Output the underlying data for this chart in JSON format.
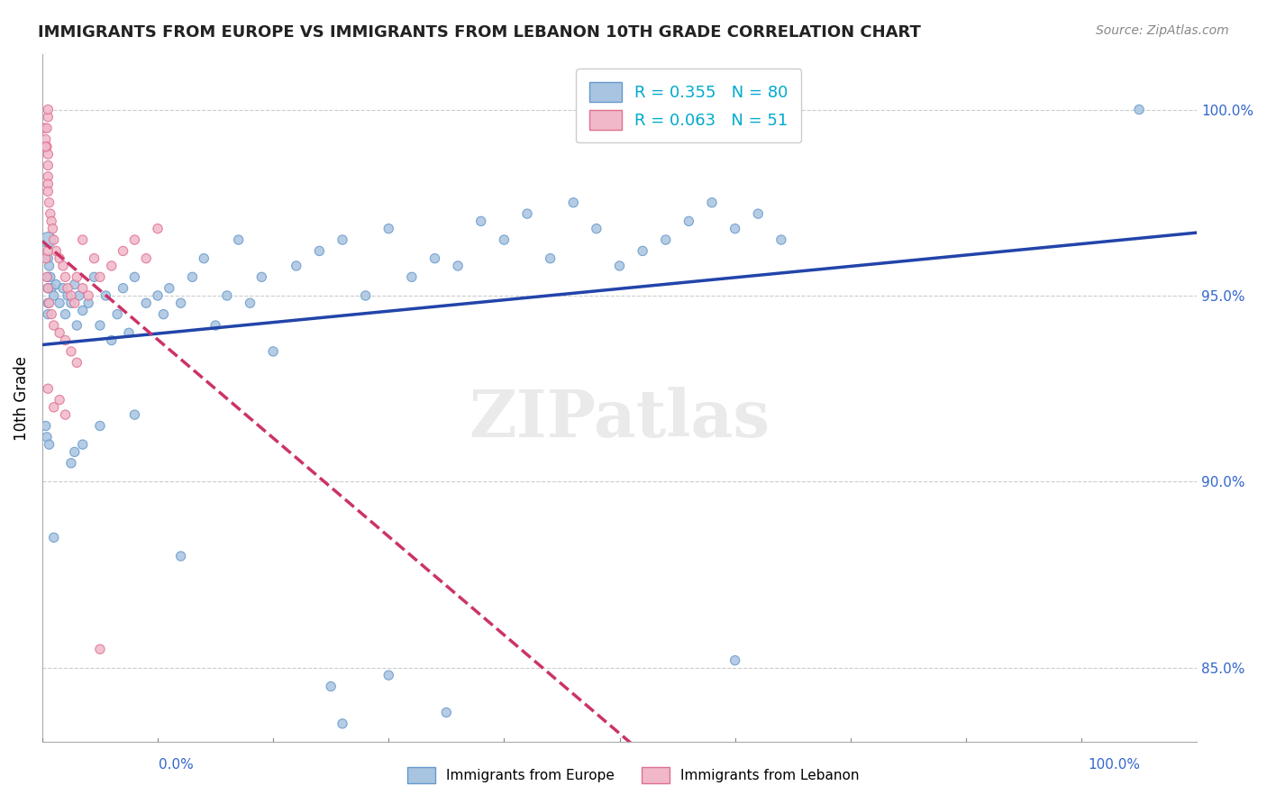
{
  "title": "IMMIGRANTS FROM EUROPE VS IMMIGRANTS FROM LEBANON 10TH GRADE CORRELATION CHART",
  "source": "Source: ZipAtlas.com",
  "ylabel": "10th Grade",
  "legend_blue_label": "Immigrants from Europe",
  "legend_pink_label": "Immigrants from Lebanon",
  "R_blue": 0.355,
  "N_blue": 80,
  "R_pink": 0.063,
  "N_pink": 51,
  "blue_color": "#a8c4e0",
  "blue_edge": "#6699cc",
  "pink_color": "#f0b8c8",
  "pink_edge": "#e07090",
  "blue_line_color": "#2244aa",
  "pink_line_color": "#cc3366",
  "xlim": [
    0.0,
    100.0
  ],
  "ylim": [
    83.0,
    101.5
  ],
  "yticks": [
    85.0,
    90.0,
    95.0,
    100.0
  ],
  "blue_points": [
    [
      0.5,
      96.5
    ],
    [
      0.5,
      96.0
    ],
    [
      0.5,
      95.5
    ],
    [
      0.5,
      95.2
    ],
    [
      0.5,
      94.8
    ],
    [
      0.5,
      94.5
    ],
    [
      0.6,
      95.8
    ],
    [
      0.7,
      95.5
    ],
    [
      0.8,
      95.2
    ],
    [
      1.0,
      95.0
    ],
    [
      1.2,
      95.3
    ],
    [
      1.5,
      94.8
    ],
    [
      1.8,
      95.2
    ],
    [
      2.0,
      94.5
    ],
    [
      2.2,
      95.0
    ],
    [
      2.5,
      94.8
    ],
    [
      2.8,
      95.3
    ],
    [
      3.0,
      94.2
    ],
    [
      3.2,
      95.0
    ],
    [
      3.5,
      94.6
    ],
    [
      4.0,
      94.8
    ],
    [
      4.5,
      95.5
    ],
    [
      5.0,
      94.2
    ],
    [
      5.5,
      95.0
    ],
    [
      6.0,
      93.8
    ],
    [
      6.5,
      94.5
    ],
    [
      7.0,
      95.2
    ],
    [
      7.5,
      94.0
    ],
    [
      8.0,
      95.5
    ],
    [
      9.0,
      94.8
    ],
    [
      10.0,
      95.0
    ],
    [
      10.5,
      94.5
    ],
    [
      11.0,
      95.2
    ],
    [
      12.0,
      94.8
    ],
    [
      13.0,
      95.5
    ],
    [
      14.0,
      96.0
    ],
    [
      15.0,
      94.2
    ],
    [
      16.0,
      95.0
    ],
    [
      17.0,
      96.5
    ],
    [
      18.0,
      94.8
    ],
    [
      19.0,
      95.5
    ],
    [
      20.0,
      93.5
    ],
    [
      22.0,
      95.8
    ],
    [
      24.0,
      96.2
    ],
    [
      26.0,
      96.5
    ],
    [
      28.0,
      95.0
    ],
    [
      30.0,
      96.8
    ],
    [
      32.0,
      95.5
    ],
    [
      34.0,
      96.0
    ],
    [
      36.0,
      95.8
    ],
    [
      38.0,
      97.0
    ],
    [
      40.0,
      96.5
    ],
    [
      42.0,
      97.2
    ],
    [
      44.0,
      96.0
    ],
    [
      46.0,
      97.5
    ],
    [
      48.0,
      96.8
    ],
    [
      50.0,
      95.8
    ],
    [
      52.0,
      96.2
    ],
    [
      54.0,
      96.5
    ],
    [
      56.0,
      97.0
    ],
    [
      58.0,
      97.5
    ],
    [
      60.0,
      96.8
    ],
    [
      62.0,
      97.2
    ],
    [
      64.0,
      96.5
    ],
    [
      1.0,
      88.5
    ],
    [
      2.5,
      90.5
    ],
    [
      2.8,
      90.8
    ],
    [
      3.5,
      91.0
    ],
    [
      5.0,
      91.5
    ],
    [
      8.0,
      91.8
    ],
    [
      12.0,
      88.0
    ],
    [
      25.0,
      84.5
    ],
    [
      26.0,
      83.5
    ],
    [
      30.0,
      84.8
    ],
    [
      35.0,
      83.8
    ],
    [
      60.0,
      85.2
    ],
    [
      95.0,
      100.0
    ],
    [
      0.3,
      91.5
    ],
    [
      0.4,
      91.2
    ],
    [
      0.6,
      91.0
    ]
  ],
  "pink_points": [
    [
      0.2,
      99.5
    ],
    [
      0.3,
      99.2
    ],
    [
      0.4,
      99.0
    ],
    [
      0.5,
      98.8
    ],
    [
      0.5,
      98.5
    ],
    [
      0.5,
      98.2
    ],
    [
      0.5,
      98.0
    ],
    [
      0.5,
      97.8
    ],
    [
      0.6,
      97.5
    ],
    [
      0.7,
      97.2
    ],
    [
      0.8,
      97.0
    ],
    [
      0.9,
      96.8
    ],
    [
      1.0,
      96.5
    ],
    [
      1.2,
      96.2
    ],
    [
      1.5,
      96.0
    ],
    [
      1.8,
      95.8
    ],
    [
      2.0,
      95.5
    ],
    [
      2.2,
      95.2
    ],
    [
      2.5,
      95.0
    ],
    [
      2.8,
      94.8
    ],
    [
      3.0,
      95.5
    ],
    [
      3.5,
      95.2
    ],
    [
      4.0,
      95.0
    ],
    [
      4.5,
      96.0
    ],
    [
      5.0,
      95.5
    ],
    [
      6.0,
      95.8
    ],
    [
      7.0,
      96.2
    ],
    [
      8.0,
      96.5
    ],
    [
      9.0,
      96.0
    ],
    [
      10.0,
      96.8
    ],
    [
      0.3,
      96.0
    ],
    [
      0.4,
      95.5
    ],
    [
      0.5,
      95.2
    ],
    [
      0.6,
      94.8
    ],
    [
      0.8,
      94.5
    ],
    [
      1.0,
      94.2
    ],
    [
      1.5,
      94.0
    ],
    [
      2.0,
      93.8
    ],
    [
      2.5,
      93.5
    ],
    [
      3.0,
      93.2
    ],
    [
      0.5,
      99.8
    ],
    [
      0.5,
      100.0
    ],
    [
      0.4,
      99.5
    ],
    [
      0.3,
      99.0
    ],
    [
      5.0,
      85.5
    ],
    [
      0.5,
      92.5
    ],
    [
      1.0,
      92.0
    ],
    [
      1.5,
      92.2
    ],
    [
      2.0,
      91.8
    ],
    [
      0.5,
      96.2
    ],
    [
      3.5,
      96.5
    ]
  ]
}
